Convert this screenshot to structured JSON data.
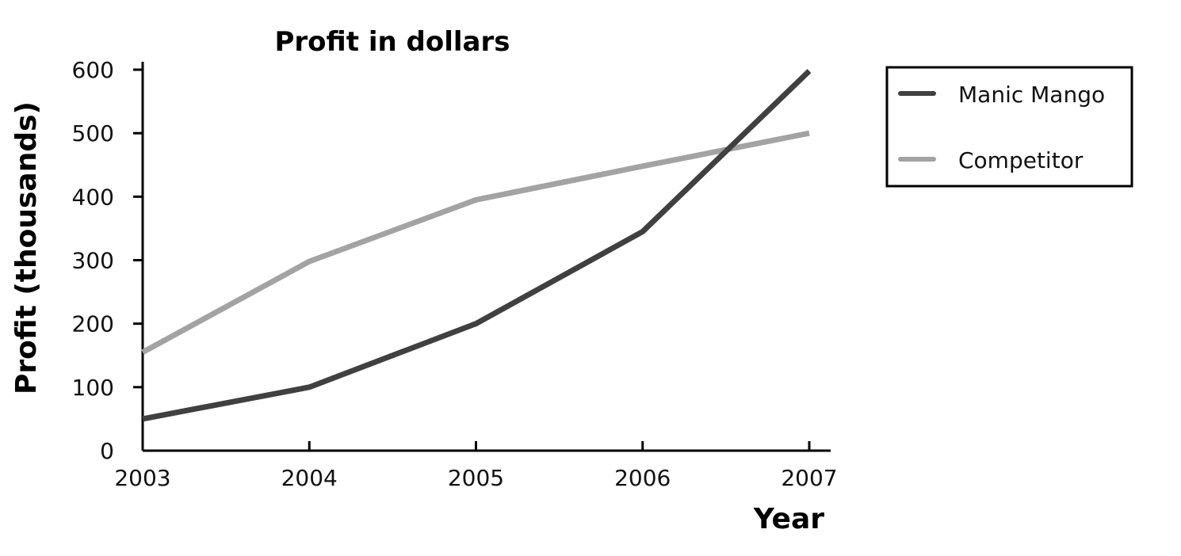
{
  "chart_data": {
    "type": "line",
    "title": "Profit in dollars",
    "xlabel": "Year",
    "ylabel": "Profit (thousands)",
    "categories": [
      "2003",
      "2004",
      "2005",
      "2006",
      "2007"
    ],
    "y_ticks": [
      "0",
      "100",
      "200",
      "300",
      "400",
      "500",
      "600"
    ],
    "ylim": [
      0,
      600
    ],
    "grid": false,
    "legend_position": "top-right",
    "series": [
      {
        "name": "Manic Mango",
        "color": "#404040",
        "values": [
          50,
          100,
          200,
          345,
          598
        ]
      },
      {
        "name": "Competitor",
        "color": "#a3a3a3",
        "values": [
          155,
          298,
          395,
          448,
          500
        ]
      }
    ]
  }
}
